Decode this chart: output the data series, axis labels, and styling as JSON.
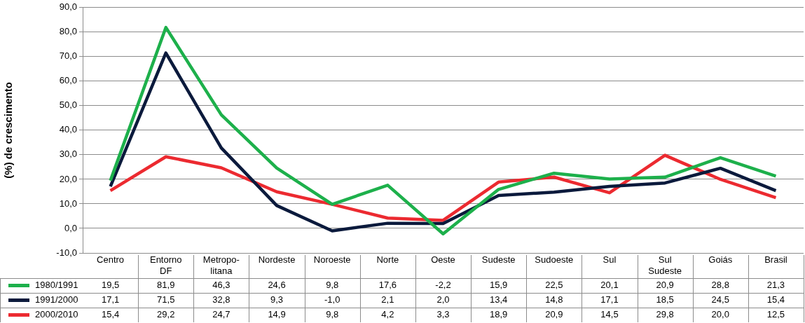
{
  "chart_data": {
    "type": "line",
    "ylabel": "(%) de crescimento",
    "categories": [
      "Centro",
      "Entorno DF",
      "Metropo-litana",
      "Nordeste",
      "Noroeste",
      "Norte",
      "Oeste",
      "Sudeste",
      "Sudoeste",
      "Sul",
      "Sul Sudeste",
      "Goiás",
      "Brasil"
    ],
    "series": [
      {
        "name": "1980/1991",
        "color": "#1db04b",
        "values": [
          19.5,
          81.9,
          46.3,
          24.6,
          9.8,
          17.6,
          -2.2,
          15.9,
          22.5,
          20.1,
          20.9,
          28.8,
          21.3
        ],
        "value_labels": [
          "19,5",
          "81,9",
          "46,3",
          "24,6",
          "9,8",
          "17,6",
          "-2,2",
          "15,9",
          "22,5",
          "20,1",
          "20,9",
          "28,8",
          "21,3"
        ]
      },
      {
        "name": "1991/2000",
        "color": "#0b1a3c",
        "values": [
          17.1,
          71.5,
          32.8,
          9.3,
          -1.0,
          2.1,
          2.0,
          13.4,
          14.8,
          17.1,
          18.5,
          24.5,
          15.4
        ],
        "value_labels": [
          "17,1",
          "71,5",
          "32,8",
          "9,3",
          "-1,0",
          "2,1",
          "2,0",
          "13,4",
          "14,8",
          "17,1",
          "18,5",
          "24,5",
          "15,4"
        ]
      },
      {
        "name": "2000/2010",
        "color": "#ec2a30",
        "values": [
          15.4,
          29.2,
          24.7,
          14.9,
          9.8,
          4.2,
          3.3,
          18.9,
          20.9,
          14.5,
          29.8,
          20.0,
          12.5
        ],
        "value_labels": [
          "15,4",
          "29,2",
          "24,7",
          "14,9",
          "9,8",
          "4,2",
          "3,3",
          "18,9",
          "20,9",
          "14,5",
          "29,8",
          "20,0",
          "12,5"
        ]
      }
    ],
    "ylim": [
      -10,
      90
    ],
    "yticks": [
      {
        "value": -10,
        "label": "-10,0"
      },
      {
        "value": 0,
        "label": "0,0"
      },
      {
        "value": 10,
        "label": "10,0"
      },
      {
        "value": 20,
        "label": "20,0"
      },
      {
        "value": 30,
        "label": "30,0"
      },
      {
        "value": 40,
        "label": "40,0"
      },
      {
        "value": 50,
        "label": "50,0"
      },
      {
        "value": 60,
        "label": "60,0"
      },
      {
        "value": 70,
        "label": "70,0"
      },
      {
        "value": 80,
        "label": "80,0"
      },
      {
        "value": 90,
        "label": "90,0"
      }
    ],
    "grid": "y",
    "legend": "bottom",
    "marker": "none",
    "line_style": "solid"
  }
}
